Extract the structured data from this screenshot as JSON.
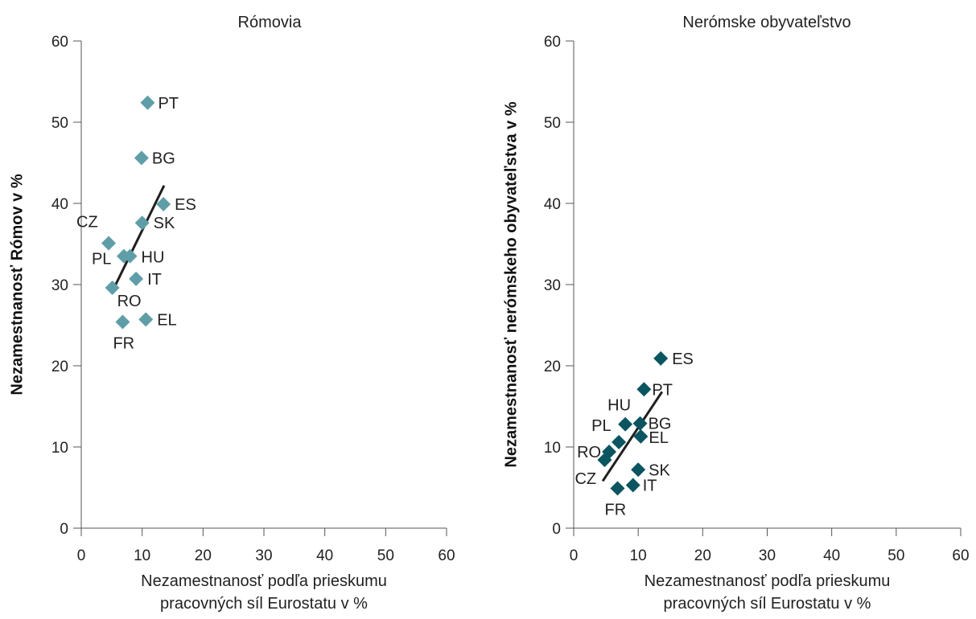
{
  "chart_data": [
    {
      "type": "scatter",
      "title": "Rómovia",
      "xlabel_lines": [
        "Nezamestnanosť podľa prieskumu",
        "pracovných síl Eurostatu v %"
      ],
      "ylabel": "Nezamestnanosť Rómov v %",
      "xlim": [
        0,
        60
      ],
      "ylim": [
        0,
        60
      ],
      "xticks": [
        0,
        10,
        20,
        30,
        40,
        50,
        60
      ],
      "yticks": [
        0,
        10,
        20,
        30,
        40,
        50,
        60
      ],
      "grid": false,
      "marker_color": "#5f9ea8",
      "points": [
        {
          "label": "PT",
          "x": 10.9,
          "y": 52.4
        },
        {
          "label": "BG",
          "x": 9.9,
          "y": 45.6
        },
        {
          "label": "ES",
          "x": 13.5,
          "y": 39.9
        },
        {
          "label": "SK",
          "x": 10.0,
          "y": 37.6
        },
        {
          "label": "CZ",
          "x": 4.5,
          "y": 35.1
        },
        {
          "label": "PL",
          "x": 7.0,
          "y": 33.5
        },
        {
          "label": "HU",
          "x": 8.0,
          "y": 33.5
        },
        {
          "label": "IT",
          "x": 9.0,
          "y": 30.7
        },
        {
          "label": "RO",
          "x": 5.1,
          "y": 29.6
        },
        {
          "label": "FR",
          "x": 6.8,
          "y": 25.4
        },
        {
          "label": "EL",
          "x": 10.6,
          "y": 25.7
        }
      ],
      "trendline": {
        "x1": 5.2,
        "y1": 29.3,
        "x2": 13.6,
        "y2": 42.2
      }
    },
    {
      "type": "scatter",
      "title": "Nerómske obyvateľstvo",
      "xlabel_lines": [
        "Nezamestnanosť podľa prieskumu",
        "pracovných síl Eurostatu v %"
      ],
      "ylabel": "Nezamestnanosť nerómskeho obyvateľstva v %",
      "xlim": [
        0,
        60
      ],
      "ylim": [
        0,
        60
      ],
      "xticks": [
        0,
        10,
        20,
        30,
        40,
        50,
        60
      ],
      "yticks": [
        0,
        10,
        20,
        30,
        40,
        50,
        60
      ],
      "grid": false,
      "marker_color": "#0b5560",
      "points": [
        {
          "label": "ES",
          "x": 13.5,
          "y": 20.9
        },
        {
          "label": "PT",
          "x": 10.9,
          "y": 17.1
        },
        {
          "label": "HU",
          "x": 8.0,
          "y": 12.8
        },
        {
          "label": "BG",
          "x": 10.3,
          "y": 12.9
        },
        {
          "label": "PL",
          "x": 7.0,
          "y": 10.6
        },
        {
          "label": "EL",
          "x": 10.4,
          "y": 11.3
        },
        {
          "label": "RO",
          "x": 5.5,
          "y": 9.4
        },
        {
          "label": "CZ",
          "x": 4.8,
          "y": 8.4
        },
        {
          "label": "SK",
          "x": 10.0,
          "y": 7.2
        },
        {
          "label": "IT",
          "x": 9.2,
          "y": 5.3
        },
        {
          "label": "FR",
          "x": 6.8,
          "y": 4.9
        }
      ],
      "trendline": {
        "x1": 4.5,
        "y1": 5.8,
        "x2": 13.7,
        "y2": 16.8
      }
    }
  ]
}
